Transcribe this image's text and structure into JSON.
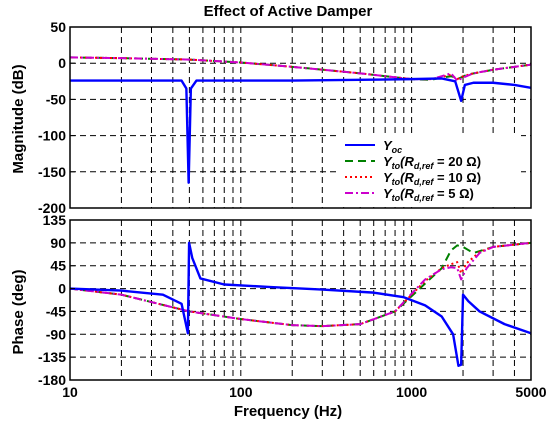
{
  "chart_data": [
    {
      "type": "line",
      "title": "Effect of Active Damper",
      "xlabel": "",
      "ylabel": "Magnitude (dB)",
      "xscale": "log",
      "xlim": [
        10,
        5000
      ],
      "ylim": [
        -200,
        50
      ],
      "xticks": [
        "10",
        "100",
        "1000",
        "5000"
      ],
      "yticks": [
        "50",
        "0",
        "-50",
        "-100",
        "-150",
        "-200"
      ],
      "grid": true,
      "legend_position": "bottom-right",
      "series": [
        {
          "name": "Y_oc",
          "legend_main": "Y",
          "legend_sub": "oc",
          "legend_rest": "",
          "color": "#0000ff",
          "dash": "solid",
          "points": [
            [
              10,
              -24
            ],
            [
              30,
              -24
            ],
            [
              45,
              -24
            ],
            [
              48,
              -35
            ],
            [
              49.5,
              -165
            ],
            [
              51,
              -35
            ],
            [
              55,
              -24
            ],
            [
              200,
              -24
            ],
            [
              500,
              -23
            ],
            [
              1000,
              -22
            ],
            [
              1500,
              -21
            ],
            [
              1800,
              -25
            ],
            [
              1950,
              -52
            ],
            [
              2050,
              -30
            ],
            [
              2300,
              -27
            ],
            [
              3000,
              -27
            ],
            [
              4000,
              -30
            ],
            [
              5000,
              -34
            ]
          ]
        },
        {
          "name": "Y_to(R_d,ref = 20 Ω)",
          "legend_main": "Y",
          "legend_sub": "to",
          "legend_rest": "(R",
          "legend_sub2": "d,ref",
          "legend_end": " = 20 Ω)",
          "color": "#008000",
          "dash": "8,5",
          "points": [
            [
              10,
              8
            ],
            [
              20,
              7
            ],
            [
              50,
              5
            ],
            [
              100,
              1
            ],
            [
              200,
              -5
            ],
            [
              500,
              -14
            ],
            [
              1000,
              -22
            ],
            [
              1300,
              -23
            ],
            [
              1500,
              -20
            ],
            [
              1700,
              -18
            ],
            [
              1900,
              -21
            ],
            [
              2100,
              -16
            ],
            [
              3000,
              -9
            ],
            [
              5000,
              -2
            ]
          ]
        },
        {
          "name": "Y_to(R_d,ref = 10 Ω)",
          "legend_main": "Y",
          "legend_sub": "to",
          "legend_rest": "(R",
          "legend_sub2": "d,ref",
          "legend_end": " = 10 Ω)",
          "color": "#ff0000",
          "dash": "2,3",
          "points": [
            [
              10,
              8
            ],
            [
              20,
              7
            ],
            [
              50,
              5
            ],
            [
              100,
              1
            ],
            [
              200,
              -5
            ],
            [
              500,
              -14
            ],
            [
              1000,
              -22
            ],
            [
              1300,
              -22
            ],
            [
              1500,
              -19
            ],
            [
              1700,
              -16
            ],
            [
              1850,
              -22
            ],
            [
              2000,
              -18
            ],
            [
              2300,
              -14
            ],
            [
              3000,
              -9
            ],
            [
              5000,
              -2
            ]
          ]
        },
        {
          "name": "Y_to(R_d,ref = 5 Ω)",
          "legend_main": "Y",
          "legend_sub": "to",
          "legend_rest": "(R",
          "legend_sub2": "d,ref",
          "legend_end": " = 5 Ω)",
          "color": "#cc00cc",
          "dash": "8,3,2,3",
          "points": [
            [
              10,
              8
            ],
            [
              20,
              7
            ],
            [
              50,
              5
            ],
            [
              100,
              1
            ],
            [
              200,
              -5
            ],
            [
              500,
              -14
            ],
            [
              1000,
              -22
            ],
            [
              1300,
              -22
            ],
            [
              1500,
              -18
            ],
            [
              1700,
              -14
            ],
            [
              1850,
              -24
            ],
            [
              2000,
              -20
            ],
            [
              2300,
              -14
            ],
            [
              3000,
              -9
            ],
            [
              5000,
              -2
            ]
          ]
        }
      ]
    },
    {
      "type": "line",
      "title": "",
      "xlabel": "Frequency  (Hz)",
      "ylabel": "Phase (deg)",
      "xscale": "log",
      "xlim": [
        10,
        5000
      ],
      "ylim": [
        -180,
        135
      ],
      "xticks": [
        "10",
        "100",
        "1000",
        "5000"
      ],
      "yticks": [
        "135",
        "90",
        "45",
        "0",
        "-45",
        "-90",
        "-135",
        "-180"
      ],
      "grid": true,
      "series": [
        {
          "name": "Y_oc",
          "color": "#0000ff",
          "dash": "solid",
          "points": [
            [
              10,
              0
            ],
            [
              20,
              -4
            ],
            [
              35,
              -12
            ],
            [
              45,
              -30
            ],
            [
              49,
              -88
            ],
            [
              49.8,
              90
            ],
            [
              52,
              60
            ],
            [
              58,
              20
            ],
            [
              80,
              8
            ],
            [
              150,
              3
            ],
            [
              300,
              -2
            ],
            [
              600,
              -8
            ],
            [
              900,
              -17
            ],
            [
              1200,
              -33
            ],
            [
              1500,
              -55
            ],
            [
              1750,
              -90
            ],
            [
              1880,
              -152
            ],
            [
              1950,
              -150
            ],
            [
              2000,
              -12
            ],
            [
              2150,
              -25
            ],
            [
              2500,
              -45
            ],
            [
              3500,
              -70
            ],
            [
              5000,
              -88
            ]
          ]
        },
        {
          "name": "Y_to(R_d,ref = 20 Ω)",
          "color": "#008000",
          "dash": "8,5",
          "points": [
            [
              10,
              0
            ],
            [
              20,
              -12
            ],
            [
              50,
              -45
            ],
            [
              100,
              -60
            ],
            [
              200,
              -72
            ],
            [
              300,
              -74
            ],
            [
              500,
              -70
            ],
            [
              800,
              -45
            ],
            [
              1000,
              -15
            ],
            [
              1200,
              10
            ],
            [
              1500,
              40
            ],
            [
              1700,
              75
            ],
            [
              1850,
              85
            ],
            [
              2000,
              82
            ],
            [
              2300,
              70
            ],
            [
              3000,
              82
            ],
            [
              5000,
              90
            ]
          ]
        },
        {
          "name": "Y_to(R_d,ref = 10 Ω)",
          "color": "#ff0000",
          "dash": "2,3",
          "points": [
            [
              10,
              0
            ],
            [
              20,
              -12
            ],
            [
              50,
              -45
            ],
            [
              100,
              -60
            ],
            [
              200,
              -72
            ],
            [
              300,
              -74
            ],
            [
              500,
              -70
            ],
            [
              800,
              -45
            ],
            [
              1000,
              -12
            ],
            [
              1200,
              15
            ],
            [
              1500,
              40
            ],
            [
              1700,
              48
            ],
            [
              1850,
              52
            ],
            [
              1950,
              30
            ],
            [
              2100,
              50
            ],
            [
              2500,
              72
            ],
            [
              3000,
              82
            ],
            [
              5000,
              90
            ]
          ]
        },
        {
          "name": "Y_to(R_d,ref = 5 Ω)",
          "color": "#cc00cc",
          "dash": "8,3,2,3",
          "points": [
            [
              10,
              0
            ],
            [
              20,
              -12
            ],
            [
              50,
              -45
            ],
            [
              100,
              -60
            ],
            [
              200,
              -72
            ],
            [
              300,
              -74
            ],
            [
              500,
              -70
            ],
            [
              800,
              -45
            ],
            [
              1000,
              -10
            ],
            [
              1200,
              18
            ],
            [
              1500,
              38
            ],
            [
              1700,
              42
            ],
            [
              1850,
              40
            ],
            [
              1950,
              18
            ],
            [
              2100,
              40
            ],
            [
              2500,
              70
            ],
            [
              3000,
              82
            ],
            [
              5000,
              90
            ]
          ]
        }
      ]
    }
  ]
}
